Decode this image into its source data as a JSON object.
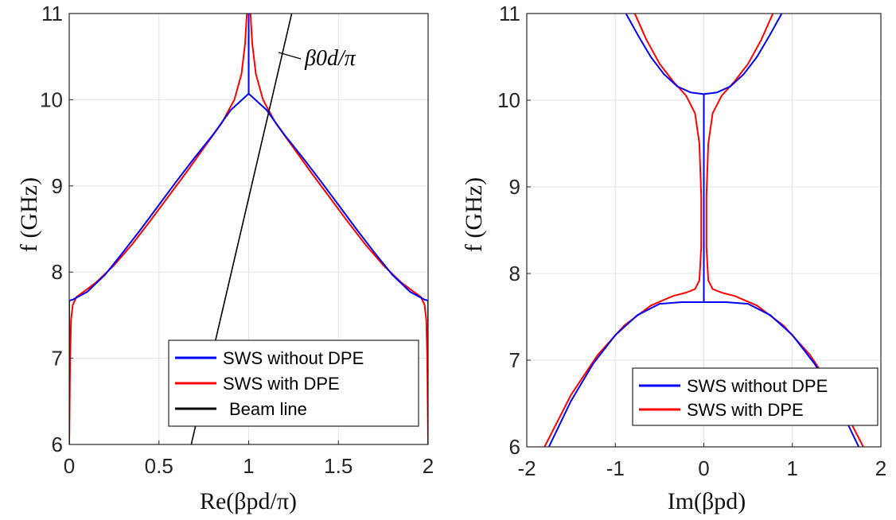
{
  "chart_data": [
    {
      "type": "line",
      "panel": "left",
      "xlabel": "Re(βpd/π)",
      "ylabel": "f (GHz)",
      "xlim": [
        0,
        2
      ],
      "ylim": [
        6,
        11
      ],
      "xticks": [
        0,
        0.5,
        1,
        1.5,
        2
      ],
      "yticks": [
        6,
        7,
        8,
        9,
        10,
        11
      ],
      "xtick_labels": [
        "0",
        "0.5",
        "1",
        "1.5",
        "2"
      ],
      "ytick_labels": [
        "6",
        "7",
        "8",
        "9",
        "10",
        "11"
      ],
      "grid": true,
      "legend_position": "bottom-right",
      "annotation": "β0d/π",
      "series": [
        {
          "name": "SWS without DPE",
          "color": "#0000ff",
          "segments": [
            {
              "x": [
                0,
                0
              ],
              "y": [
                6,
                7.67
              ]
            },
            {
              "x": [
                0,
                0.02,
                0.1,
                0.2,
                0.3,
                0.4,
                0.5,
                0.6,
                0.7,
                0.8,
                0.9,
                1.0,
                1.1,
                1.2,
                1.3,
                1.4,
                1.5,
                1.6,
                1.7,
                1.8,
                1.9,
                1.98,
                2.0
              ],
              "y": [
                7.67,
                7.68,
                7.77,
                7.97,
                8.23,
                8.5,
                8.78,
                9.06,
                9.33,
                9.59,
                9.88,
                10.07,
                9.88,
                9.59,
                9.33,
                9.06,
                8.78,
                8.5,
                8.23,
                7.97,
                7.77,
                7.68,
                7.67
              ]
            },
            {
              "x": [
                2,
                2
              ],
              "y": [
                7.67,
                6
              ]
            },
            {
              "x": [
                1,
                1
              ],
              "y": [
                10.07,
                11
              ]
            }
          ]
        },
        {
          "name": "SWS with DPE",
          "color": "#ff0000",
          "segments": [
            {
              "x": [
                0.0,
                0.005,
                0.01,
                0.02,
                0.04,
                0.08,
                0.15,
                0.25,
                0.35,
                0.45,
                0.55,
                0.65,
                0.75,
                0.85,
                0.92,
                0.96,
                0.98,
                0.99
              ],
              "y": [
                6.0,
                7.0,
                7.45,
                7.62,
                7.71,
                7.77,
                7.88,
                8.08,
                8.32,
                8.59,
                8.87,
                9.15,
                9.44,
                9.73,
                10.0,
                10.3,
                10.65,
                11.0
              ]
            },
            {
              "x": [
                1.01,
                1.02,
                1.04,
                1.08,
                1.15,
                1.25,
                1.35,
                1.45,
                1.55,
                1.65,
                1.75,
                1.85,
                1.92,
                1.96,
                1.98,
                1.99,
                1.995,
                2.0
              ],
              "y": [
                11.0,
                10.65,
                10.3,
                10.0,
                9.73,
                9.44,
                9.15,
                8.87,
                8.59,
                8.32,
                8.08,
                7.88,
                7.77,
                7.71,
                7.62,
                7.45,
                7.0,
                6.0
              ]
            }
          ]
        },
        {
          "name": "Beam line",
          "color": "#000000",
          "segments": [
            {
              "x": [
                0.68,
                1.24
              ],
              "y": [
                6,
                11
              ]
            }
          ]
        }
      ]
    },
    {
      "type": "line",
      "panel": "right",
      "xlabel": "Im(βpd)",
      "ylabel": "f (GHz)",
      "xlim": [
        -2,
        2
      ],
      "ylim": [
        6,
        11
      ],
      "xticks": [
        -2,
        -1,
        0,
        1,
        2
      ],
      "yticks": [
        6,
        7,
        8,
        9,
        10,
        11
      ],
      "xtick_labels": [
        "-2",
        "-1",
        "0",
        "1",
        "2"
      ],
      "ytick_labels": [
        "6",
        "7",
        "8",
        "9",
        "10",
        "11"
      ],
      "grid": true,
      "legend_position": "bottom-right",
      "series": [
        {
          "name": "SWS without DPE",
          "color": "#0000ff",
          "segments": [
            {
              "x": [
                -1.75,
                -1.5,
                -1.25,
                -1.0,
                -0.75,
                -0.5,
                -0.25,
                0,
                0.25,
                0.5,
                0.75,
                1.0,
                1.25,
                1.5,
                1.75
              ],
              "y": [
                6.0,
                6.53,
                6.96,
                7.29,
                7.52,
                7.65,
                7.67,
                7.67,
                7.67,
                7.65,
                7.52,
                7.29,
                6.96,
                6.53,
                6.0
              ]
            },
            {
              "x": [
                0,
                0
              ],
              "y": [
                7.67,
                10.07
              ]
            },
            {
              "x": [
                -0.88,
                -0.75,
                -0.6,
                -0.45,
                -0.3,
                -0.15,
                0,
                0.15,
                0.3,
                0.45,
                0.6,
                0.75,
                0.88
              ],
              "y": [
                11.0,
                10.76,
                10.5,
                10.3,
                10.16,
                10.09,
                10.07,
                10.09,
                10.16,
                10.3,
                10.5,
                10.76,
                11.0
              ]
            }
          ]
        },
        {
          "name": "SWS with DPE",
          "color": "#ff0000",
          "segments": [
            {
              "x": [
                -1.8,
                -1.5,
                -1.2,
                -0.9,
                -0.6,
                -0.35,
                -0.2,
                -0.1,
                -0.05,
                -0.03,
                -0.03,
                -0.05,
                -0.1,
                -0.2,
                -0.35,
                -0.5,
                -0.65,
                -0.78
              ],
              "y": [
                6.0,
                6.6,
                7.06,
                7.4,
                7.63,
                7.74,
                7.78,
                7.82,
                7.92,
                8.3,
                8.9,
                9.5,
                9.85,
                10.05,
                10.22,
                10.42,
                10.7,
                11.0
              ]
            },
            {
              "x": [
                0.78,
                0.65,
                0.5,
                0.35,
                0.2,
                0.1,
                0.05,
                0.03,
                0.03,
                0.05,
                0.1,
                0.2,
                0.35,
                0.6,
                0.9,
                1.2,
                1.5,
                1.8
              ],
              "y": [
                11.0,
                10.7,
                10.42,
                10.22,
                10.05,
                9.85,
                9.5,
                8.9,
                8.3,
                7.92,
                7.82,
                7.78,
                7.74,
                7.63,
                7.4,
                7.06,
                6.6,
                6.0
              ]
            }
          ]
        }
      ]
    }
  ]
}
